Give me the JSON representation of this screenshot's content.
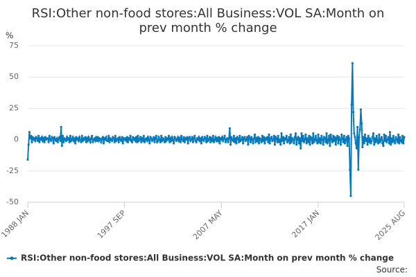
{
  "chart_data": {
    "type": "line",
    "title_lines": [
      "RSI:Other non-food stores:All Business:VOL SA:Month on",
      "prev month % change"
    ],
    "y_unit": "%",
    "source": "Source:",
    "ylim": [
      -50,
      75
    ],
    "yticks": [
      -50,
      -25,
      0,
      25,
      50,
      75
    ],
    "grid": true,
    "categories": [
      "1988 JAN",
      null,
      null,
      null,
      null,
      null,
      null,
      null,
      null,
      null,
      null,
      null,
      null,
      null,
      null,
      null,
      null,
      null,
      null,
      null,
      null,
      null,
      null,
      null,
      null,
      null,
      null,
      null,
      null,
      null,
      null,
      null,
      null,
      null,
      null,
      null,
      null,
      null,
      null,
      null,
      null,
      null,
      null,
      null,
      null,
      null,
      null,
      null,
      null,
      null,
      null,
      null,
      null,
      null,
      null,
      null,
      null,
      null,
      null,
      null,
      null,
      null,
      null,
      null,
      null,
      null,
      null,
      null,
      null,
      null,
      null,
      null,
      null,
      null,
      null,
      null,
      null,
      null,
      null,
      null,
      null,
      null,
      null,
      null,
      null,
      null,
      null,
      null,
      null,
      null,
      null,
      null,
      null,
      null,
      null,
      null,
      null,
      null,
      null,
      null,
      null,
      null,
      null,
      null,
      null,
      null,
      null,
      null,
      null,
      null,
      null,
      null,
      null,
      null,
      null,
      null,
      "1997 SEP",
      null,
      null,
      null,
      null,
      null,
      null,
      null,
      null,
      null,
      null,
      null,
      null,
      null,
      null,
      null,
      null,
      null,
      null,
      null,
      null,
      null,
      null,
      null,
      null,
      null,
      null,
      null,
      null,
      null,
      null,
      null,
      null,
      null,
      null,
      null,
      null,
      null,
      null,
      null,
      null,
      null,
      null,
      null,
      null,
      null,
      null,
      null,
      null,
      null,
      null,
      null,
      null,
      null,
      null,
      null,
      null,
      null,
      null,
      null,
      null,
      null,
      null,
      null,
      null,
      null,
      null,
      null,
      null,
      null,
      null,
      null,
      null,
      null,
      null,
      null,
      null,
      null,
      null,
      null,
      null,
      null,
      null,
      null,
      null,
      null,
      null,
      null,
      null,
      null,
      null,
      null,
      null,
      null,
      null,
      null,
      null,
      null,
      null,
      null,
      null,
      null,
      null,
      null,
      null,
      null,
      null,
      null,
      null,
      null,
      null,
      null,
      null,
      null,
      null,
      null,
      "2007 MAY",
      null,
      null,
      null,
      null,
      null,
      null,
      null,
      null,
      null,
      null,
      null,
      null,
      null,
      null,
      null,
      null,
      null,
      null,
      null,
      null,
      null,
      null,
      null,
      null,
      null,
      null,
      null,
      null,
      null,
      null,
      null,
      null,
      null,
      null,
      null,
      null,
      null,
      null,
      null,
      null,
      null,
      null,
      null,
      null,
      null,
      null,
      null,
      null,
      null,
      null,
      null,
      null,
      null,
      null,
      null,
      null,
      null,
      null,
      null,
      null,
      null,
      null,
      null,
      null,
      null,
      null,
      null,
      null,
      null,
      null,
      null,
      null,
      null,
      null,
      null,
      null,
      null,
      null,
      null,
      null,
      null,
      null,
      null,
      null,
      null,
      null,
      null,
      null,
      null,
      null,
      null,
      null,
      null,
      null,
      null,
      null,
      null,
      null,
      null,
      null,
      null,
      null,
      null,
      null,
      null,
      null,
      null,
      null,
      null,
      null,
      null,
      null,
      null,
      null,
      null,
      "2017 JAN",
      null,
      null,
      null,
      null,
      null,
      null,
      null,
      null,
      null,
      null,
      null,
      null,
      null,
      null,
      null,
      null,
      null,
      null,
      null,
      null,
      null,
      null,
      null,
      null,
      null,
      null,
      null,
      null,
      null,
      null,
      null,
      null,
      null,
      null,
      null,
      null,
      null,
      null,
      null,
      null,
      null,
      null,
      null,
      null,
      null,
      null,
      null,
      null,
      null,
      null,
      null,
      null,
      null,
      null,
      null,
      null,
      null,
      null,
      null,
      null,
      null,
      null,
      null,
      null,
      null,
      null,
      null,
      null,
      null,
      null,
      null,
      null,
      null,
      null,
      null,
      null,
      null,
      null,
      null,
      null,
      null,
      null,
      null,
      null,
      null,
      null,
      null,
      null,
      null,
      null,
      null,
      null,
      null,
      null,
      null,
      null,
      null,
      null,
      null,
      null,
      null,
      null,
      "2025 AUG"
    ],
    "series": [
      {
        "name": "RSI:Other non-food stores:All Business:VOL SA:Month on prev month % change",
        "color": "#0a79b8",
        "values": [
          -16,
          -4,
          6,
          1,
          3,
          -2,
          2,
          0,
          1,
          -1,
          2,
          1,
          -1,
          3,
          -2,
          1,
          0,
          2,
          -1,
          1,
          -2,
          2,
          0,
          1,
          1,
          -2,
          3,
          0,
          -1,
          2,
          1,
          -3,
          2,
          0,
          -1,
          1,
          -2,
          1,
          2,
          -1,
          10,
          -5,
          3,
          -2,
          1,
          0,
          -1,
          2,
          0,
          1,
          -2,
          3,
          -1,
          0,
          2,
          -1,
          1,
          -3,
          2,
          0,
          1,
          -1,
          2,
          0,
          -2,
          3,
          -1,
          1,
          0,
          2,
          -2,
          1,
          -1,
          2,
          0,
          -2,
          1,
          3,
          -2,
          0,
          1,
          -1,
          2,
          -1,
          2,
          -1,
          1,
          0,
          -2,
          1,
          2,
          -3,
          1,
          0,
          2,
          -1,
          -1,
          3,
          -2,
          1,
          0,
          -1,
          2,
          1,
          -2,
          3,
          -1,
          0,
          1,
          -2,
          2,
          0,
          -1,
          2,
          -3,
          1,
          0,
          1,
          -1,
          2,
          -2,
          1,
          0,
          3,
          -1,
          -2,
          2,
          0,
          1,
          -1,
          2,
          -2,
          3,
          -1,
          0,
          2,
          -2,
          1,
          -1,
          3,
          -2,
          0,
          1,
          -1,
          2,
          0,
          -3,
          2,
          1,
          -1,
          0,
          2,
          -2,
          1,
          3,
          -2,
          -1,
          2,
          0,
          -2,
          3,
          -1,
          1,
          0,
          -2,
          2,
          -1,
          1,
          0,
          3,
          -2,
          1,
          -1,
          2,
          0,
          -3,
          2,
          1,
          -1,
          0,
          2,
          -1,
          1,
          -2,
          3,
          0,
          -1,
          2,
          -2,
          1,
          0,
          2,
          -3,
          1,
          2,
          -1,
          0,
          2,
          -2,
          1,
          3,
          -1,
          -2,
          1,
          0,
          2,
          -1,
          1,
          -3,
          2,
          0,
          -1,
          2,
          1,
          -2,
          3,
          -1,
          0,
          2,
          -2,
          1,
          -1,
          3,
          -2,
          0,
          2,
          -1,
          1,
          -1,
          2,
          -3,
          1,
          0,
          2,
          -1,
          1,
          3,
          -2,
          0,
          1,
          -2,
          1,
          9,
          -4,
          2,
          0,
          -1,
          3,
          -2,
          1,
          -3,
          2,
          1,
          -2,
          3,
          -1,
          0,
          2,
          -3,
          1,
          2,
          -1,
          0,
          2,
          -4,
          3,
          1,
          -2,
          2,
          0,
          -3,
          1,
          4,
          -2,
          1,
          -1,
          2,
          -3,
          1,
          0,
          -2,
          3,
          -1,
          2,
          -3,
          1,
          0,
          2,
          -2,
          4,
          -3,
          1,
          2,
          -1,
          0,
          3,
          -4,
          2,
          1,
          -2,
          3,
          -2,
          0,
          -4,
          5,
          -1,
          2,
          -3,
          1,
          0,
          3,
          -2,
          -1,
          2,
          -3,
          4,
          -2,
          1,
          0,
          -3,
          2,
          5,
          -4,
          1,
          2,
          -3,
          1,
          -7,
          5,
          -1,
          3,
          -2,
          0,
          4,
          -3,
          1,
          -2,
          3,
          -4,
          2,
          1,
          -3,
          5,
          -2,
          0,
          3,
          -1,
          -3,
          4,
          -2,
          1,
          -3,
          3,
          0,
          -4,
          2,
          1,
          -2,
          5,
          -3,
          -1,
          3,
          -5,
          4,
          0,
          -2,
          3,
          -1,
          2,
          -4,
          1,
          3,
          -3,
          2,
          0,
          -4,
          4,
          1,
          -2,
          3,
          -3,
          0,
          2,
          -5,
          3,
          1,
          -24,
          -45,
          28,
          61,
          22,
          5,
          2,
          -3,
          -7,
          10,
          -24,
          2,
          8,
          24,
          13,
          -6,
          2,
          -3,
          4,
          -1,
          1,
          -4,
          3,
          -2,
          1,
          -3,
          -1,
          2,
          5,
          -4,
          1,
          -2,
          3,
          -1,
          -3,
          4,
          -2,
          0,
          2,
          -3,
          -5,
          4,
          -1,
          3,
          -2,
          0,
          2,
          -3,
          6,
          -4,
          1,
          -2,
          3,
          -1,
          -3,
          2,
          0,
          -2,
          4,
          -3,
          2,
          -1,
          -2,
          3,
          -3,
          2
        ]
      }
    ]
  }
}
